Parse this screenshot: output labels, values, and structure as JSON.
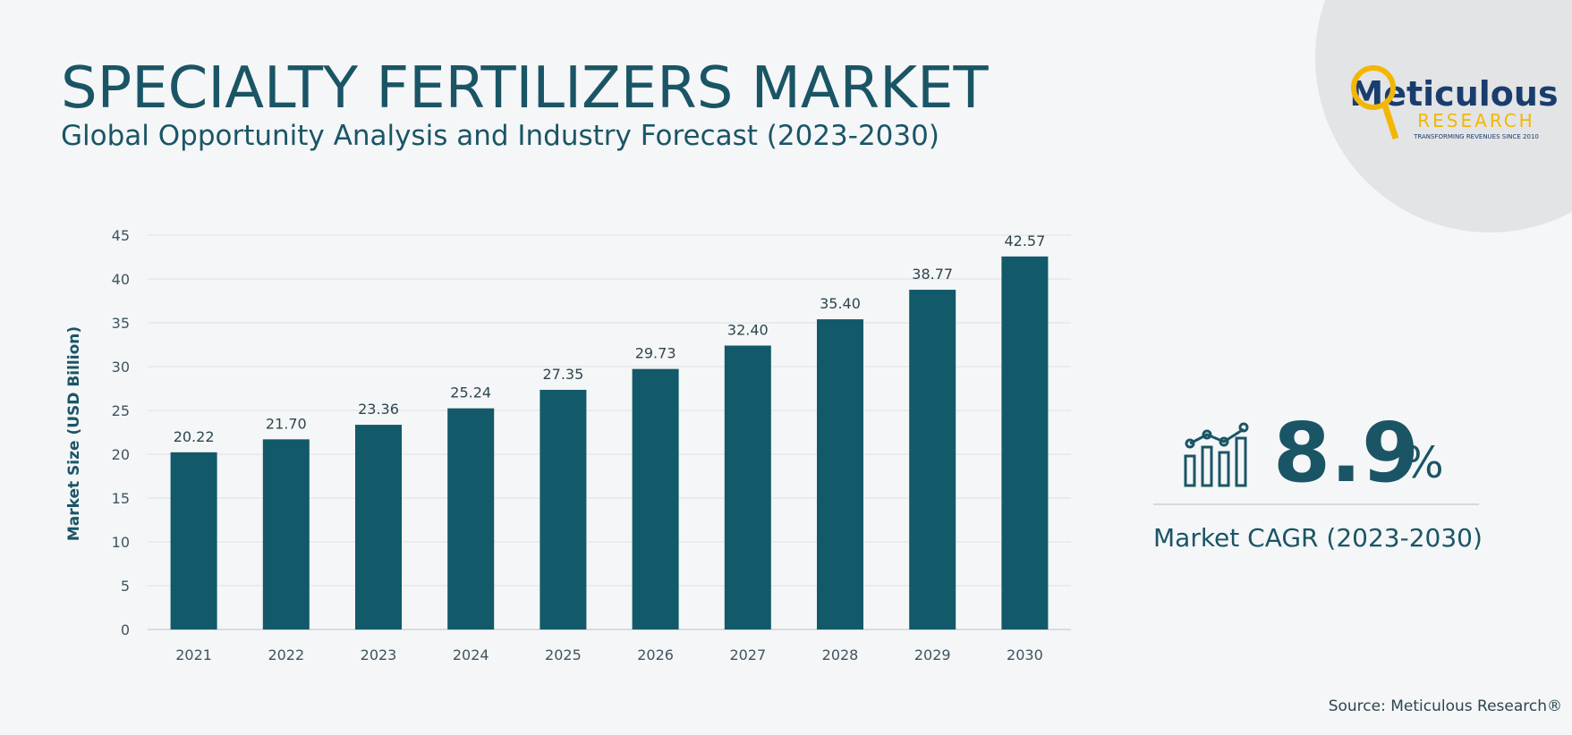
{
  "chart_data": {
    "type": "bar",
    "title": "SPECIALTY FERTILIZERS MARKET",
    "subtitle": "Global Opportunity Analysis and Industry Forecast (2023-2030)",
    "y_label": "Market Size (USD Billion)",
    "categories": [
      "2021",
      "2022",
      "2023",
      "2024",
      "2025",
      "2026",
      "2027",
      "2028",
      "2029",
      "2030"
    ],
    "values": [
      20.22,
      21.7,
      23.36,
      25.24,
      27.35,
      29.73,
      32.4,
      35.4,
      38.77,
      42.57
    ],
    "value_labels": [
      "20.22",
      "21.70",
      "23.36",
      "25.24",
      "27.35",
      "29.73",
      "32.40",
      "35.40",
      "38.77",
      "42.57"
    ],
    "color": "#12596a",
    "ylim": [
      0,
      45
    ],
    "yticks": [
      0,
      5,
      10,
      15,
      20,
      25,
      30,
      35,
      40,
      45
    ],
    "grid": true
  },
  "cagr": {
    "value": 8.9,
    "unit": "%",
    "label": "Market CAGR (2023-2030)"
  },
  "logo": {
    "name": "Meticulous",
    "sub": "RESEARCH",
    "tagline": "TRANSFORMING REVENUES SINCE 2010"
  },
  "source": "Source: Meticulous Research®"
}
